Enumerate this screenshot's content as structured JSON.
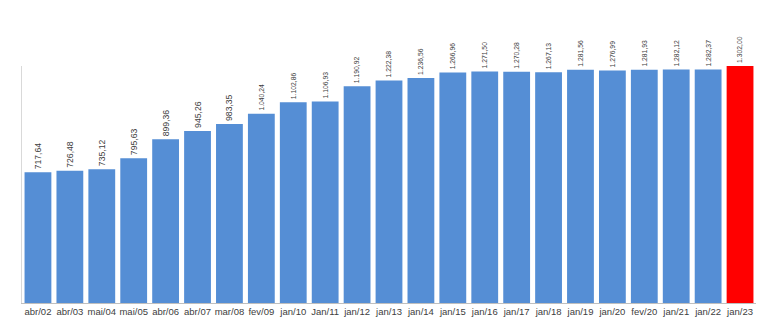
{
  "chart_data": {
    "type": "bar",
    "categories": [
      "abr/02",
      "abr/03",
      "mai/04",
      "mai/05",
      "abr/06",
      "abr/07",
      "mar/08",
      "fev/09",
      "jan/10",
      "Jan/11",
      "jan/12",
      "jan/13",
      "jan/14",
      "jan/15",
      "jan/16",
      "jan/17",
      "jan/18",
      "jan/19",
      "jan/20",
      "fev/20",
      "jan/21",
      "jan/22",
      "jan/23"
    ],
    "values": [
      717.64,
      726.48,
      735.12,
      795.63,
      899.36,
      945.26,
      983.35,
      1040.24,
      1102.86,
      1106.93,
      1190.92,
      1222.38,
      1236.56,
      1266.96,
      1271.5,
      1270.28,
      1267.13,
      1281.56,
      1276.99,
      1281.93,
      1282.12,
      1282.37,
      1302.0
    ],
    "value_labels": [
      "717,64",
      "726,48",
      "735,12",
      "795,63",
      "899,36",
      "945,26",
      "983,35",
      "1.040,24",
      "1.102,86",
      "1.106,93",
      "1.190,92",
      "1.222,38",
      "1.236,56",
      "1.266,96",
      "1.271,50",
      "1.270,28",
      "1.267,13",
      "1.281,56",
      "1.276,99",
      "1.281,93",
      "1.282,12",
      "1.282,37",
      "1.302,00"
    ],
    "colors": [
      "#558ed5",
      "#558ed5",
      "#558ed5",
      "#558ed5",
      "#558ed5",
      "#558ed5",
      "#558ed5",
      "#558ed5",
      "#558ed5",
      "#558ed5",
      "#558ed5",
      "#558ed5",
      "#558ed5",
      "#558ed5",
      "#558ed5",
      "#558ed5",
      "#558ed5",
      "#558ed5",
      "#558ed5",
      "#558ed5",
      "#558ed5",
      "#558ed5",
      "#ff0000"
    ],
    "ylim": [
      0,
      1302
    ],
    "data_labels": true,
    "tick_labels": "x",
    "grid": false
  }
}
